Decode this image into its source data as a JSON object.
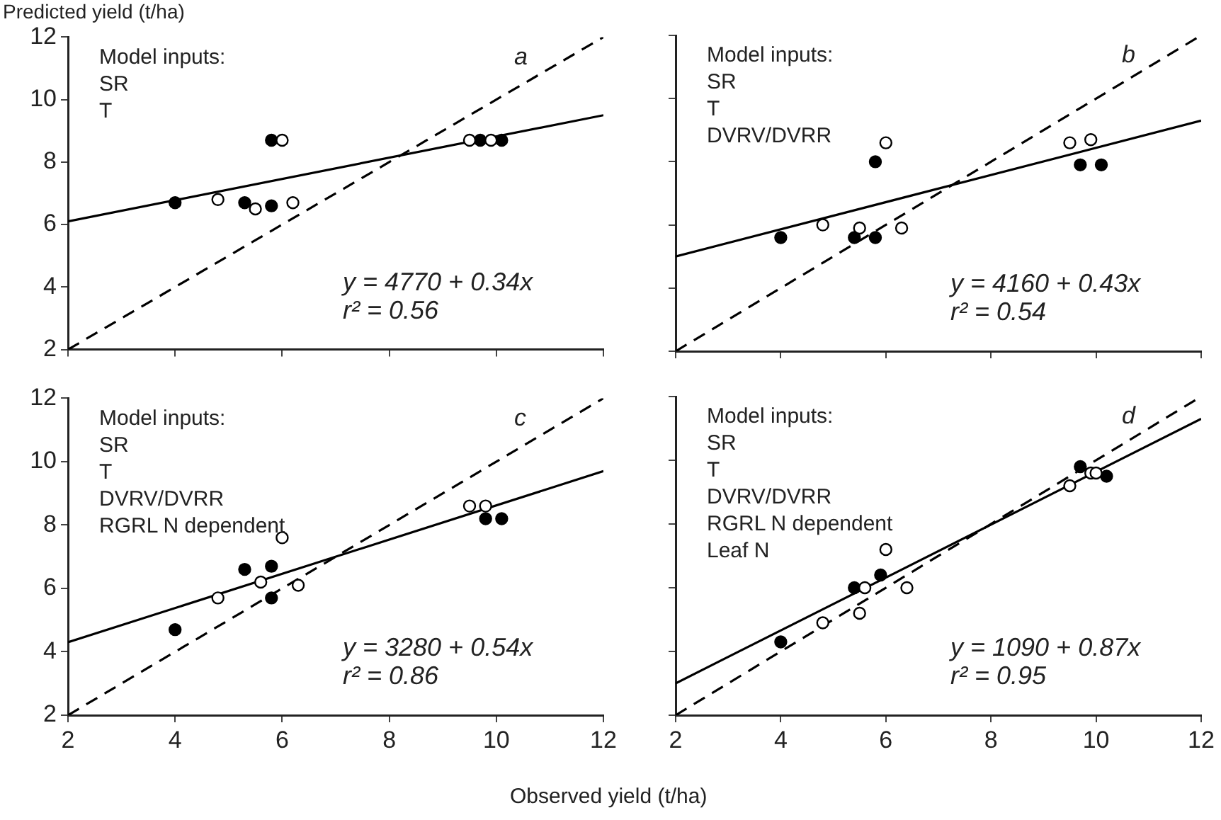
{
  "chart_data": [
    {
      "type": "scatter",
      "ylabel": "Predicted yield (t/ha)",
      "xlim": [
        2,
        12
      ],
      "ylim": [
        2,
        12
      ],
      "xticks": [
        2,
        4,
        6,
        8,
        10,
        12
      ],
      "yticks": [
        2,
        4,
        6,
        8,
        10,
        12
      ],
      "tick_labels": "y",
      "marker": "circle",
      "annotations": [
        "Model inputs:\nSR\nT",
        "a",
        "y = 4770 + 0.34x",
        "r² = 0.56"
      ],
      "series": [
        {
          "type": "line",
          "color": "#000000",
          "marker": "none",
          "line_style": "dashed",
          "x": [
            2,
            12
          ],
          "values": [
            2,
            12
          ]
        },
        {
          "type": "line",
          "color": "#000000",
          "marker": "none",
          "line_style": "solid",
          "x": [
            2,
            12
          ],
          "values": [
            6.1,
            9.5
          ]
        },
        {
          "color": "#000000",
          "x": [
            4.0,
            5.3,
            5.8,
            5.8,
            9.7,
            10.1
          ],
          "values": [
            6.7,
            6.7,
            8.7,
            6.6,
            8.7,
            8.7
          ]
        },
        {
          "color": "#ffffff",
          "x": [
            4.8,
            5.5,
            6.0,
            6.2,
            9.5,
            9.9
          ],
          "values": [
            6.8,
            6.5,
            8.7,
            6.7,
            8.7,
            8.7
          ]
        }
      ]
    },
    {
      "type": "scatter",
      "xlim": [
        2,
        12
      ],
      "ylim": [
        2,
        12
      ],
      "xticks": [
        2,
        4,
        6,
        8,
        10,
        12
      ],
      "yticks": [
        2,
        4,
        6,
        8,
        10,
        12
      ],
      "tick_labels": false,
      "marker": "circle",
      "annotations": [
        "Model inputs:\nSR\nT\nDVRV/DVRR",
        "b",
        "y = 4160 + 0.43x",
        "r² = 0.54"
      ],
      "series": [
        {
          "type": "line",
          "color": "#000000",
          "marker": "none",
          "line_style": "dashed",
          "x": [
            2,
            12
          ],
          "values": [
            2,
            12
          ]
        },
        {
          "type": "line",
          "color": "#000000",
          "marker": "none",
          "line_style": "solid",
          "x": [
            2,
            12
          ],
          "values": [
            5.0,
            9.3
          ]
        },
        {
          "color": "#000000",
          "x": [
            4.0,
            5.4,
            5.8,
            5.8,
            9.7,
            10.1
          ],
          "values": [
            5.6,
            5.6,
            8.0,
            5.6,
            7.9,
            7.9
          ]
        },
        {
          "color": "#ffffff",
          "x": [
            4.8,
            5.5,
            6.0,
            6.3,
            9.5,
            9.9
          ],
          "values": [
            6.0,
            5.9,
            8.6,
            5.9,
            8.6,
            8.7
          ]
        }
      ]
    },
    {
      "type": "scatter",
      "xlabel": "Observed yield (t/ha)",
      "xlim": [
        2,
        12
      ],
      "ylim": [
        2,
        12
      ],
      "xticks": [
        2,
        4,
        6,
        8,
        10,
        12
      ],
      "yticks": [
        2,
        4,
        6,
        8,
        10,
        12
      ],
      "marker": "circle",
      "annotations": [
        "Model inputs:\nSR\nT\nDVRV/DVRR\nRGRL N dependent",
        "c",
        "y = 3280 + 0.54x",
        "r² = 0.86"
      ],
      "series": [
        {
          "type": "line",
          "color": "#000000",
          "marker": "none",
          "line_style": "dashed",
          "x": [
            2,
            12
          ],
          "values": [
            2,
            12
          ]
        },
        {
          "type": "line",
          "color": "#000000",
          "marker": "none",
          "line_style": "solid",
          "x": [
            2,
            12
          ],
          "values": [
            4.3,
            9.7
          ]
        },
        {
          "color": "#000000",
          "x": [
            4.0,
            5.3,
            5.8,
            5.8,
            9.8,
            10.1
          ],
          "values": [
            4.7,
            6.6,
            6.7,
            5.7,
            8.2,
            8.2
          ]
        },
        {
          "color": "#ffffff",
          "x": [
            4.8,
            5.6,
            6.0,
            6.3,
            9.5,
            9.8
          ],
          "values": [
            5.7,
            6.2,
            7.6,
            6.1,
            8.6,
            8.6
          ]
        }
      ]
    },
    {
      "type": "scatter",
      "xlim": [
        2,
        12
      ],
      "ylim": [
        2,
        12
      ],
      "xticks": [
        2,
        4,
        6,
        8,
        10,
        12
      ],
      "yticks": [
        2,
        4,
        6,
        8,
        10,
        12
      ],
      "tick_labels": "x",
      "marker": "circle",
      "annotations": [
        "Model inputs:\nSR\nT\nDVRV/DVRR\nRGRL N dependent\nLeaf N",
        "d",
        "y = 1090 + 0.87x",
        "r² = 0.95"
      ],
      "series": [
        {
          "type": "line",
          "color": "#000000",
          "marker": "none",
          "line_style": "dashed",
          "x": [
            2,
            12
          ],
          "values": [
            2,
            12
          ]
        },
        {
          "type": "line",
          "color": "#000000",
          "marker": "none",
          "line_style": "solid",
          "x": [
            2,
            12
          ],
          "values": [
            3.0,
            11.3
          ]
        },
        {
          "color": "#000000",
          "x": [
            4.0,
            5.4,
            5.9,
            9.7,
            10.2
          ],
          "values": [
            4.3,
            6.0,
            6.4,
            9.8,
            9.5
          ]
        },
        {
          "color": "#ffffff",
          "x": [
            4.8,
            5.5,
            5.6,
            6.0,
            6.4,
            9.5,
            9.9,
            10.0
          ],
          "values": [
            4.9,
            5.2,
            6.0,
            7.2,
            6.0,
            9.2,
            9.6,
            9.6
          ]
        }
      ]
    }
  ]
}
